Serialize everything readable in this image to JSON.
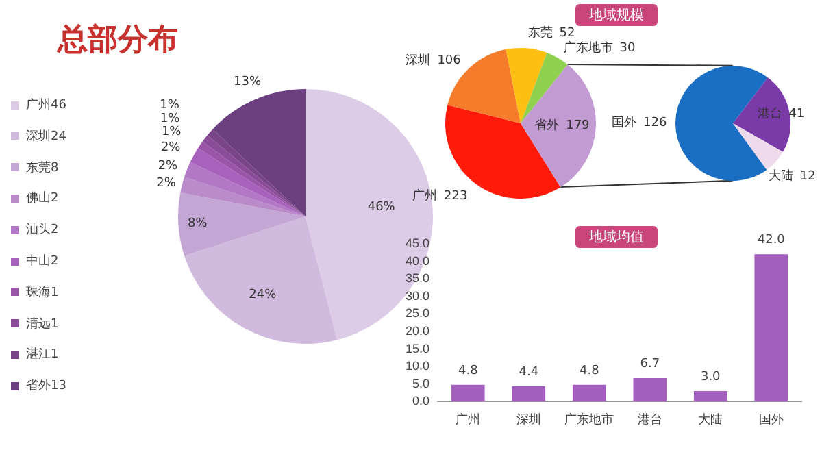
{
  "chart_data": [
    {
      "type": "pie",
      "title": "总部分布",
      "categories": [
        "广州46",
        "深圳24",
        "东莞8",
        "佛山2",
        "汕头2",
        "中山2",
        "珠海1",
        "清远1",
        "湛江1",
        "省外13"
      ],
      "values": [
        46,
        24,
        8,
        2,
        2,
        2,
        1,
        1,
        1,
        13
      ],
      "colors": [
        "#ddcce7",
        "#d0bade",
        "#c4a6d5",
        "#b98bc9",
        "#b277c5",
        "#a862bd",
        "#9a55a8",
        "#8a4b98",
        "#7a4489",
        "#6b3f80"
      ],
      "value_labels": [
        "46%",
        "24%",
        "8%",
        "2%",
        "2%",
        "2%",
        "1%",
        "1%",
        "1%",
        "13%"
      ],
      "legend": "left"
    },
    {
      "type": "pie",
      "title": "地域规模",
      "categories": [
        "广州",
        "深圳",
        "东莞",
        "广东地市",
        "省外"
      ],
      "values": [
        223,
        106,
        52,
        30,
        179
      ],
      "colors": [
        "#ff1a0a",
        "#f57c2a",
        "#fcbf12",
        "#8fd14f",
        "#c39bd3"
      ],
      "data_labels": true
    },
    {
      "type": "pie",
      "categories": [
        "国外",
        "港台",
        "大陆"
      ],
      "values": [
        126,
        41,
        12
      ],
      "colors": [
        "#1a6fc4",
        "#7a3aa8",
        "#eedaea"
      ],
      "data_labels": true
    },
    {
      "type": "bar",
      "title": "地域均值",
      "categories": [
        "广州",
        "深圳",
        "广东地市",
        "港台",
        "大陆",
        "国外"
      ],
      "values": [
        4.8,
        4.4,
        4.8,
        6.7,
        3.0,
        42.0
      ],
      "color": "#a25fbd",
      "ylim": [
        0,
        45
      ],
      "yticks": [
        {
          "value": 0,
          "label": "0.0"
        },
        {
          "value": 5,
          "label": "5.0"
        },
        {
          "value": 10,
          "label": "10.0"
        },
        {
          "value": 15,
          "label": "15.0"
        },
        {
          "value": 20,
          "label": "20.0"
        },
        {
          "value": 25,
          "label": "25.0"
        },
        {
          "value": 30,
          "label": "30.0"
        },
        {
          "value": 35,
          "label": "35.0"
        },
        {
          "value": 40,
          "label": "40.0"
        },
        {
          "value": 45,
          "label": "45.0"
        }
      ],
      "value_labels": [
        "4.8",
        "4.4",
        "4.8",
        "6.7",
        "3.0",
        "42.0"
      ]
    }
  ]
}
